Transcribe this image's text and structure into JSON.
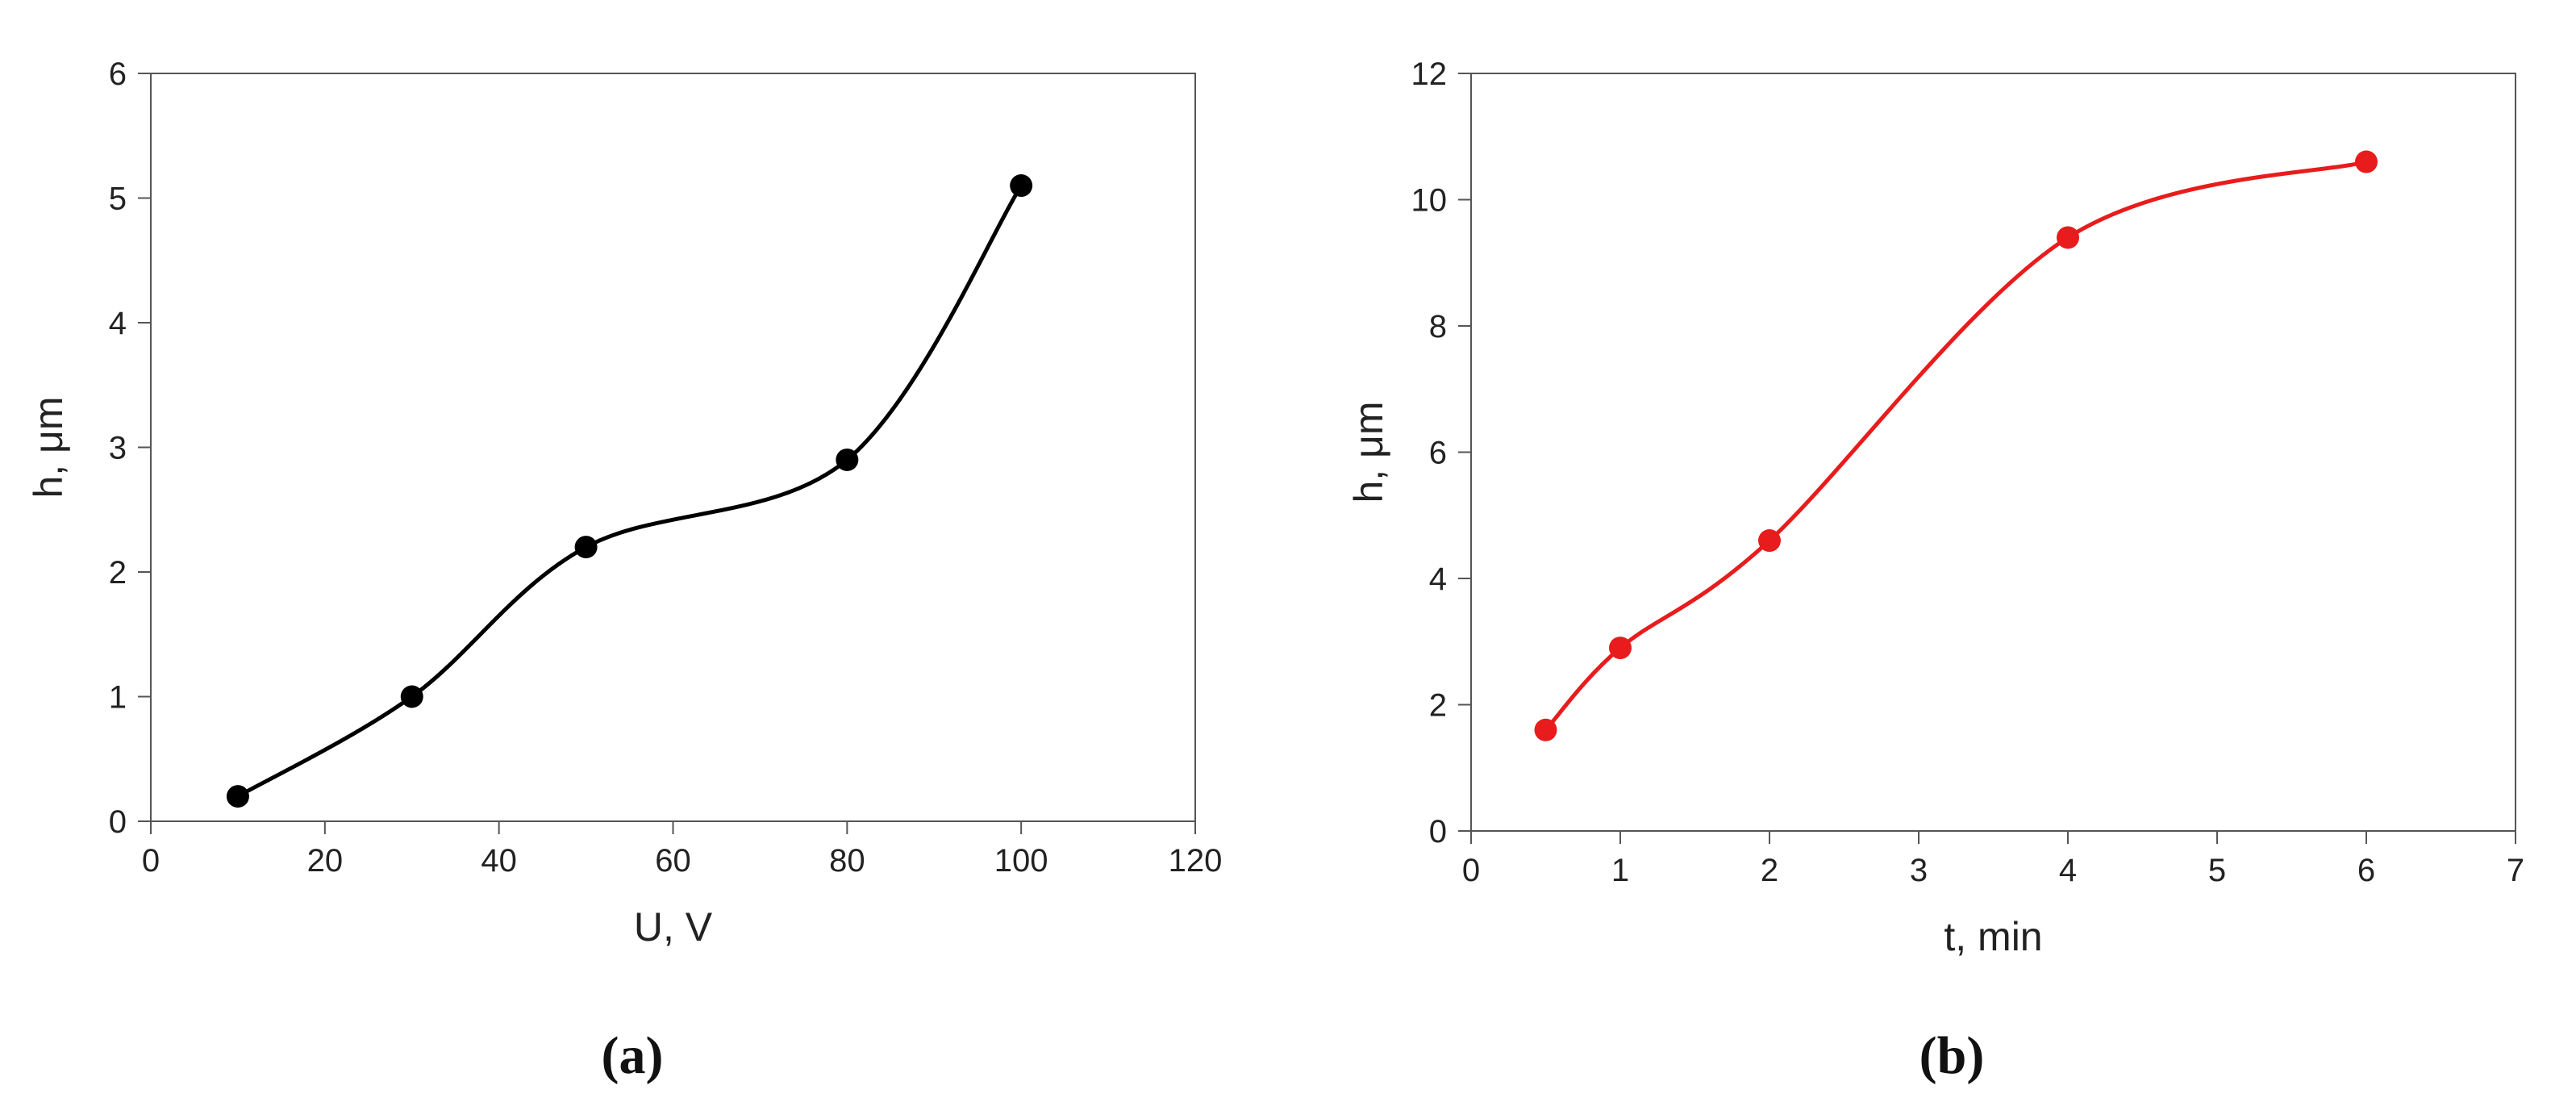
{
  "chart_data": [
    {
      "type": "line",
      "panel_label": "(a)",
      "title": "",
      "xlabel": "U, V",
      "ylabel": "h, μm",
      "xlim": [
        0,
        120
      ],
      "ylim": [
        0,
        6
      ],
      "xticks": [
        0,
        20,
        40,
        60,
        80,
        100,
        120
      ],
      "yticks": [
        0,
        1,
        2,
        3,
        4,
        5,
        6
      ],
      "smooth": true,
      "markers": true,
      "grid": false,
      "legend": "none",
      "series": [
        {
          "color": "#000000",
          "x": [
            10,
            30,
            50,
            80,
            100
          ],
          "y": [
            0.2,
            1.0,
            2.2,
            2.9,
            5.1
          ]
        }
      ]
    },
    {
      "type": "line",
      "panel_label": "(b)",
      "title": "",
      "xlabel": "t, min",
      "ylabel": "h, μm",
      "xlim": [
        0,
        7
      ],
      "ylim": [
        0,
        12
      ],
      "xticks": [
        0,
        1,
        2,
        3,
        4,
        5,
        6,
        7
      ],
      "yticks": [
        0,
        2,
        4,
        6,
        8,
        10,
        12
      ],
      "smooth": true,
      "markers": true,
      "grid": false,
      "legend": "none",
      "series": [
        {
          "color": "#e81c1c",
          "x": [
            0.5,
            1,
            2,
            4,
            6
          ],
          "y": [
            1.6,
            2.9,
            4.6,
            9.4,
            10.6
          ]
        }
      ]
    }
  ]
}
